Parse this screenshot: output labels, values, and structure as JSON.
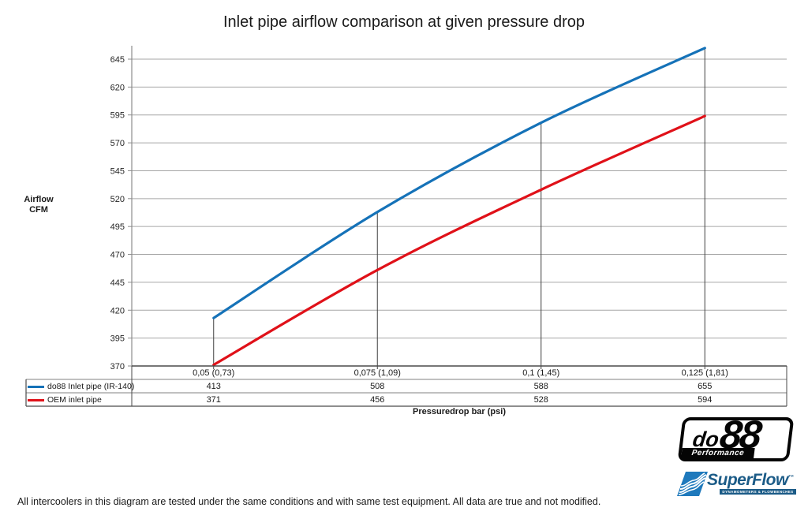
{
  "title": "Inlet pipe airflow comparison at given pressure drop",
  "footer_note": "All intercoolers in this diagram are tested under the same conditions and with same test equipment. All data are true and not modified.",
  "chart_data": {
    "type": "line",
    "title": "Inlet pipe airflow comparison at given pressure drop",
    "categories": [
      "0,05 (0,73)",
      "0,075 (1,09)",
      "0,1 (1,45)",
      "0,125 (1,81)"
    ],
    "series": [
      {
        "name": "do88 Inlet pipe (IR-140)",
        "color": "#1572B8",
        "values": [
          413,
          508,
          588,
          655
        ]
      },
      {
        "name": "OEM inlet pipe",
        "color": "#E01119",
        "values": [
          371,
          456,
          528,
          594
        ]
      }
    ],
    "xlabel": "Pressuredrop bar (psi)",
    "ylabel": "Airflow\nCFM",
    "ylim": [
      370,
      645
    ],
    "yticks": [
      370,
      395,
      420,
      445,
      470,
      495,
      520,
      545,
      570,
      595,
      620,
      645
    ],
    "grid": "horizontal",
    "legend_position": "table-left",
    "gridline_color": "#A6A6A6",
    "axis_color": "#8C8C8C",
    "dropline_color": "#404040",
    "table_border_dark": "#4A4A4A",
    "table_border_light": "#808080",
    "tick_label_color": "#262626"
  },
  "logos": {
    "do88": {
      "part1": "do",
      "part2": "88",
      "subtext": "Performance"
    },
    "superflow": {
      "text": "SuperFlow",
      "tm": "™",
      "subtext": "DYNAMOMETERS & FLOWBENCHES"
    }
  }
}
